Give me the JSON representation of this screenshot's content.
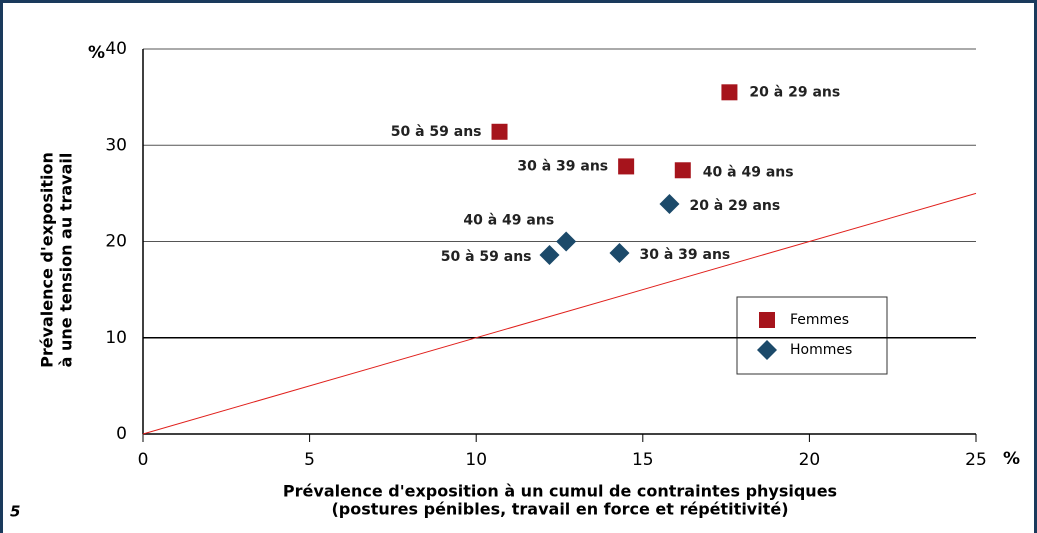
{
  "chart_data": {
    "type": "scatter",
    "figure_number": "5",
    "x_label": [
      "Prévalence d'exposition à un cumul de contraintes physiques",
      "(postures pénibles, travail en force et répétitivité)"
    ],
    "y_label": [
      "Prévalence d'exposition",
      "à une tension au travail"
    ],
    "x_unit": "%",
    "y_unit": "%",
    "xlim": [
      0,
      25
    ],
    "xticks": [
      0,
      5,
      10,
      15,
      20,
      25
    ],
    "ylim": [
      0,
      40
    ],
    "yticks": [
      0,
      10,
      20,
      30,
      40
    ],
    "grid": true,
    "reference_line": {
      "x": [
        0,
        25
      ],
      "y": [
        0,
        25
      ],
      "color": "#e0201c"
    },
    "series": [
      {
        "name": "Femmes",
        "color": "#a6141c",
        "marker": "square",
        "labels": [
          "20 à 29 ans",
          "50 à 59 ans",
          "30 à 39 ans",
          "40 à 49 ans"
        ],
        "x": [
          17.6,
          10.7,
          14.5,
          16.2
        ],
        "values": [
          35.5,
          31.4,
          27.8,
          27.4
        ]
      },
      {
        "name": "Hommes",
        "color": "#1c4a6a",
        "marker": "diamond",
        "labels": [
          "20 à 29 ans",
          "40 à 49 ans",
          "50 à 59 ans",
          "30 à 39 ans"
        ],
        "x": [
          15.8,
          12.7,
          12.2,
          14.3
        ],
        "values": [
          23.9,
          20.0,
          18.6,
          18.8
        ]
      }
    ]
  }
}
